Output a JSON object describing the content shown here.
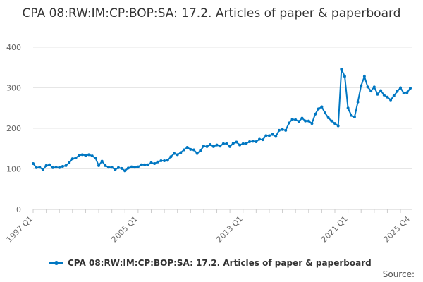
{
  "chart_data": {
    "type": "line",
    "title": "CPA 08:RW:IM:CP:BOP:SA: 17.2. Articles of paper & paperboard",
    "xlabel": "",
    "ylabel": "",
    "ylim": [
      0,
      400
    ],
    "yticks": [
      0,
      100,
      200,
      300,
      400
    ],
    "x_start": "1997 Q1",
    "x_end": "2025 Q4",
    "xtick_labels": [
      "1997 Q1",
      "2005 Q1",
      "2013 Q1",
      "2021 Q1",
      "2025 Q4"
    ],
    "grid": "horizontal",
    "legend": "bottom",
    "color": "#0077c2",
    "series": [
      {
        "name": "CPA 08:RW:IM:CP:BOP:SA: 17.2. Articles of paper & paperboard",
        "values": [
          113,
          103,
          104,
          98,
          108,
          110,
          103,
          104,
          103,
          106,
          108,
          115,
          125,
          127,
          133,
          135,
          133,
          135,
          132,
          127,
          108,
          119,
          108,
          104,
          104,
          98,
          103,
          101,
          95,
          102,
          105,
          104,
          105,
          110,
          110,
          110,
          115,
          113,
          117,
          120,
          120,
          121,
          130,
          138,
          135,
          140,
          147,
          153,
          148,
          147,
          138,
          145,
          156,
          155,
          160,
          155,
          159,
          156,
          162,
          162,
          155,
          163,
          166,
          159,
          162,
          163,
          167,
          168,
          167,
          173,
          172,
          182,
          182,
          185,
          180,
          195,
          197,
          195,
          213,
          222,
          221,
          217,
          225,
          218,
          218,
          212,
          235,
          248,
          253,
          238,
          226,
          218,
          212,
          206,
          346,
          328,
          250,
          232,
          228,
          265,
          305,
          328,
          302,
          292,
          302,
          284,
          293,
          282,
          277,
          270,
          280,
          291,
          300,
          287,
          288,
          299
        ]
      }
    ],
    "source_label": "Source:"
  }
}
